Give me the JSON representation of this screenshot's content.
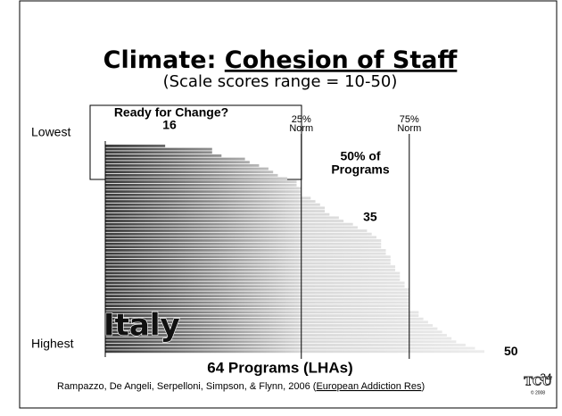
{
  "chart_data": {
    "type": "bar",
    "orientation": "horizontal",
    "title_prefix": "Climate: ",
    "title_underlined": "Cohesion of Staff",
    "subtitle": "(Scale scores range = 10-50)",
    "xlim": [
      10,
      50
    ],
    "values": [
      16,
      21,
      21,
      22,
      24.5,
      25,
      26,
      27,
      27.5,
      28,
      29,
      30,
      30,
      30.5,
      30.5,
      30.5,
      31.5,
      32,
      32.5,
      33,
      33,
      33.5,
      34.5,
      35,
      36,
      36.5,
      37.5,
      38,
      38.5,
      39,
      39,
      39,
      39.5,
      39.5,
      40,
      40,
      40,
      40.5,
      40.5,
      41,
      41,
      41,
      41.5,
      41.5,
      42,
      42,
      42,
      42,
      42,
      42,
      42,
      43,
      43,
      43.5,
      44,
      44.5,
      45,
      45.5,
      46,
      46.5,
      47,
      48,
      49,
      50
    ],
    "value_labels": [
      "16",
      null,
      null,
      null,
      null,
      null,
      null,
      null,
      null,
      null,
      null,
      null,
      null,
      null,
      null,
      null,
      null,
      null,
      null,
      null,
      null,
      null,
      null,
      "35",
      null,
      null,
      null,
      null,
      null,
      null,
      null,
      null,
      null,
      null,
      null,
      null,
      null,
      null,
      null,
      null,
      null,
      null,
      null,
      null,
      null,
      null,
      null,
      null,
      null,
      null,
      null,
      null,
      null,
      null,
      null,
      null,
      null,
      null,
      null,
      null,
      null,
      null,
      null,
      "50"
    ],
    "y_label_top": "Lowest",
    "y_label_bottom": "Highest",
    "x_label": "64 Programs (LHAs)",
    "norms": [
      {
        "label": [
          "25%",
          "Norm"
        ],
        "value": 30.5
      },
      {
        "label": [
          "75%",
          "Norm"
        ],
        "value": 42
      }
    ],
    "box_label": "Ready for Change?",
    "middle_label": [
      "50% of",
      "Programs"
    ],
    "country": "Italy"
  },
  "slide_number": "34",
  "citation": {
    "text": "Rampazzo, De Angeli, Serpelloni, Simpson, & Flynn, 2006 (",
    "journal": "European Addiction Res",
    "close": ")"
  },
  "logo": {
    "text": "TCU",
    "year": "© 2008"
  }
}
